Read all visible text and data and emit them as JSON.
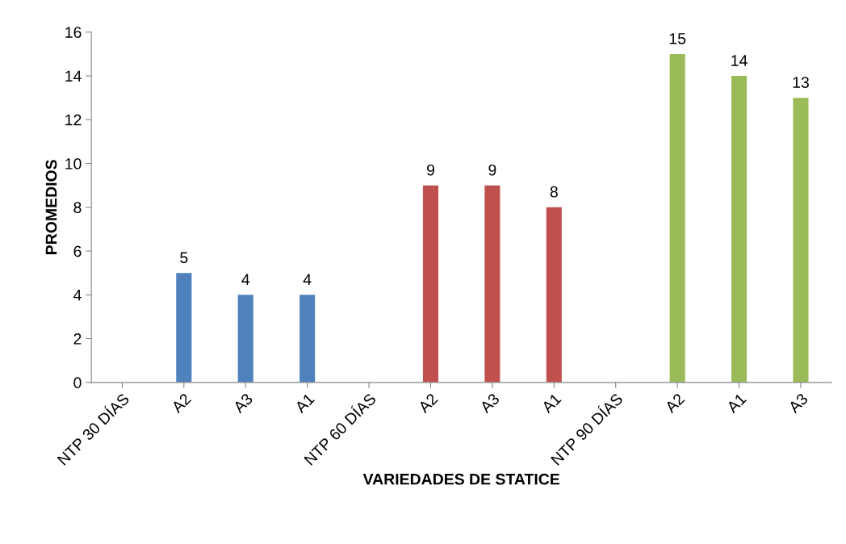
{
  "chart_data": {
    "type": "bar",
    "xlabel": "VARIEDADES DE STATICE",
    "ylabel": "PROMEDIOS",
    "categories": [
      "NTP 30 DÍAS",
      "A2",
      "A3",
      "A1",
      "NTP 60 DÍAS",
      "A2",
      "A3",
      "A1",
      "NTP 90 DÍAS",
      "A2",
      "A1",
      "A3"
    ],
    "values": [
      null,
      5,
      4,
      4,
      null,
      9,
      9,
      8,
      null,
      15,
      14,
      13
    ],
    "colors": [
      null,
      "#4f81bd",
      "#4f81bd",
      "#4f81bd",
      null,
      "#c0504d",
      "#c0504d",
      "#c0504d",
      null,
      "#9bbb59",
      "#9bbb59",
      "#9bbb59"
    ],
    "ylim": [
      0,
      16
    ],
    "yticks": [
      0,
      2,
      4,
      6,
      8,
      10,
      12,
      14,
      16
    ],
    "grid": false,
    "legend": false,
    "data_labels": true
  }
}
